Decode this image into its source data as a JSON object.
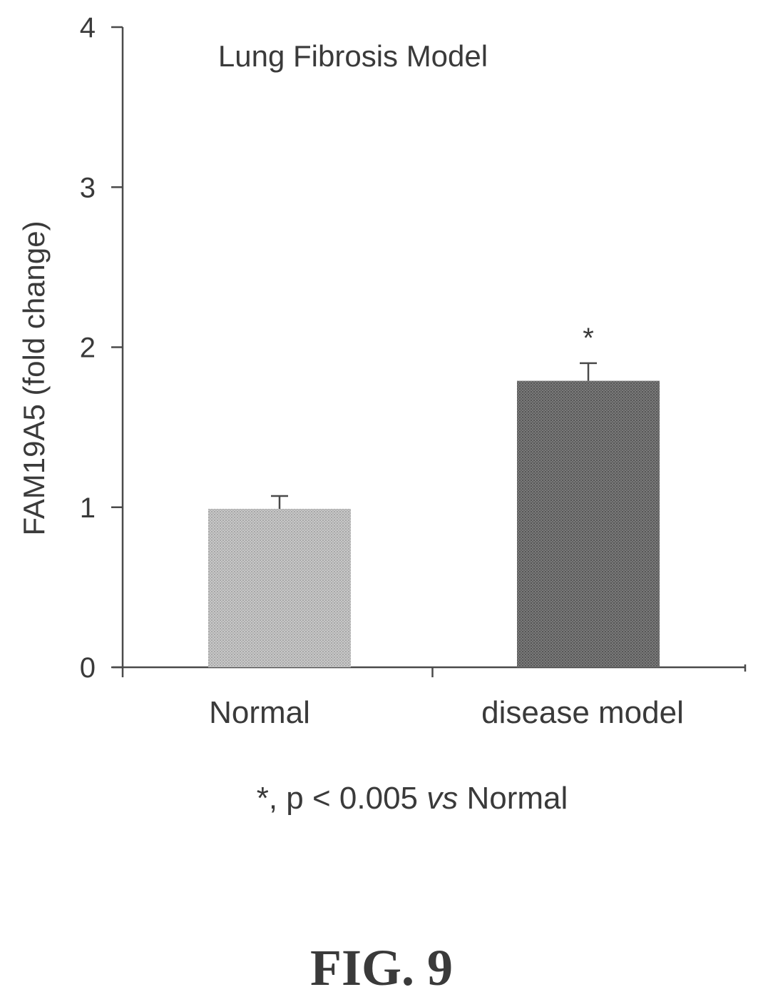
{
  "chart_data": {
    "type": "bar",
    "title": "Lung Fibrosis Model",
    "ylabel": "FAM19A5 (fold change)",
    "xlabel": "",
    "ylim": [
      0,
      4
    ],
    "yticks": [
      0,
      1,
      2,
      3,
      4
    ],
    "categories": [
      "Normal",
      "disease model"
    ],
    "values": [
      0.99,
      1.79
    ],
    "errors": [
      0.08,
      0.11
    ],
    "significance": [
      "",
      "*"
    ],
    "colors": [
      "#b9b9b9",
      "#6e6e6e"
    ],
    "grid": false
  },
  "note": {
    "prefix": "*, p < 0.005 ",
    "italic": "vs",
    "suffix": " Normal"
  },
  "figure_label": "FIG. 9"
}
